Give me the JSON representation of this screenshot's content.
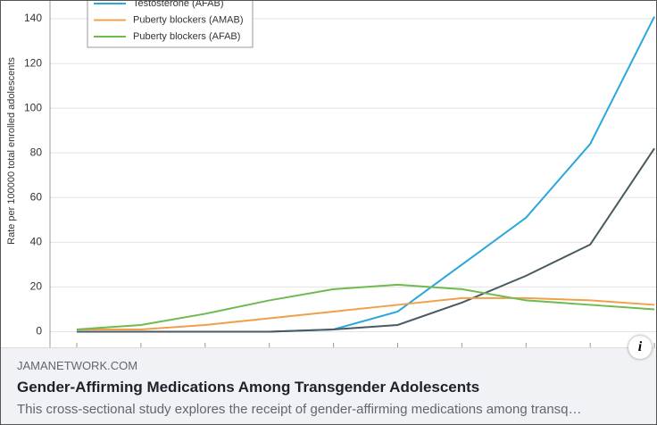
{
  "chart_data": {
    "type": "line",
    "y_label": "Rate per 100000 total enrolled adolescents",
    "categories": [
      null,
      null,
      null,
      null,
      null,
      null,
      null,
      null,
      null,
      null
    ],
    "series": [
      {
        "name": "Testosterone (AFAB)",
        "color": "#2aa7dc",
        "values": [
          0,
          0,
          0,
          0,
          1,
          9,
          30,
          51,
          84,
          141
        ]
      },
      {
        "color": "#4a5a62",
        "values": [
          0,
          0,
          0,
          0,
          1,
          3,
          13,
          25,
          39,
          82
        ]
      },
      {
        "name": "Puberty blockers (AMAB)",
        "color": "#f0a04b",
        "values": [
          1,
          1,
          3,
          6,
          9,
          12,
          15,
          15,
          14,
          12
        ]
      },
      {
        "name": "Puberty blockers (AFAB)",
        "color": "#6dbb4f",
        "values": [
          1,
          3,
          8,
          14,
          19,
          21,
          19,
          14,
          12,
          10
        ]
      }
    ],
    "ylim": [
      -7,
      148
    ],
    "yticks": [
      0,
      20,
      40,
      60,
      80,
      100,
      120,
      140
    ],
    "grid": true
  },
  "card": {
    "source": "JAMANETWORK.COM",
    "title": "Gender-Affirming Medications Among Transgender Adolescents",
    "description": "This cross-sectional study explores the receipt of gender-affirming medications among transq…"
  }
}
